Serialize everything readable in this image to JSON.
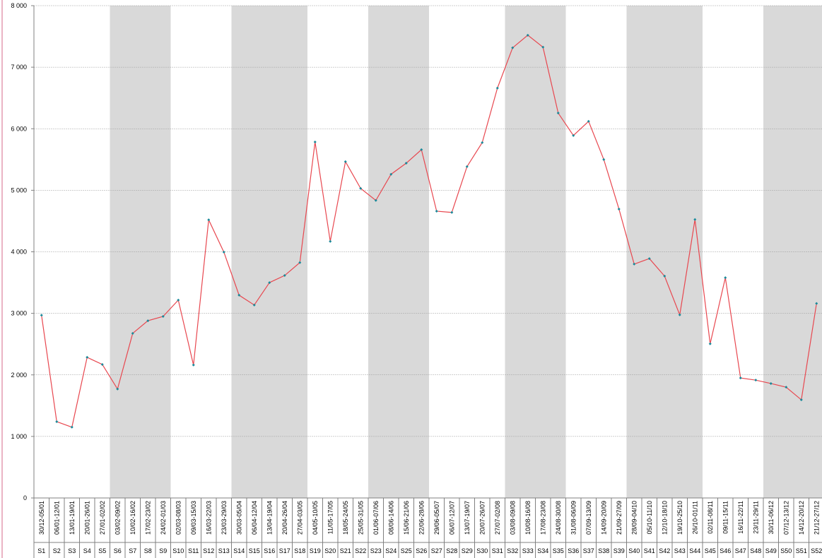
{
  "chart_data": {
    "type": "line",
    "categories": [
      "S1",
      "S2",
      "S3",
      "S4",
      "S5",
      "S6",
      "S7",
      "S8",
      "S9",
      "S10",
      "S11",
      "S12",
      "S13",
      "S14",
      "S15",
      "S16",
      "S17",
      "S18",
      "S19",
      "S20",
      "S21",
      "S22",
      "S23",
      "S24",
      "S25",
      "S26",
      "S27",
      "S28",
      "S29",
      "S30",
      "S31",
      "S32",
      "S33",
      "S34",
      "S35",
      "S36",
      "S37",
      "S38",
      "S39",
      "S40",
      "S41",
      "S42",
      "S43",
      "S44",
      "S45",
      "S46",
      "S47",
      "S48",
      "S49",
      "S50",
      "S51",
      "S52"
    ],
    "date_ranges": [
      "30/12-05/01",
      "06/01-12/01",
      "13/01-19/01",
      "20/01-26/01",
      "27/01-02/02",
      "03/02-09/02",
      "10/02-16/02",
      "17/02-23/02",
      "24/02-01/03",
      "02/03-08/03",
      "09/03-15/03",
      "16/03-22/03",
      "23/03-29/03",
      "30/03-05/04",
      "06/04-12/04",
      "13/04-19/04",
      "20/04-26/04",
      "27/04-03/05",
      "04/05-10/05",
      "11/05-17/05",
      "18/05-24/05",
      "25/05-31/05",
      "01/06-07/06",
      "08/06-14/06",
      "15/06-21/06",
      "22/06-28/06",
      "29/06-05/07",
      "06/07-12/07",
      "13/07-19/07",
      "20/07-26/07",
      "27/07-02/08",
      "03/08-09/08",
      "10/08-16/08",
      "17/08-23/08",
      "24/08-30/08",
      "31/08-06/09",
      "07/09-13/09",
      "14/09-20/09",
      "21/09-27/09",
      "28/09-04/10",
      "05/10-11/10",
      "12/10-18/10",
      "19/10-25/10",
      "26/10-01/11",
      "02/11-08/11",
      "09/11-15/11",
      "16/11-22/11",
      "23/11-29/11",
      "30/11-06/12",
      "07/12-13/12",
      "14/12-20/12",
      "21/12-27/12"
    ],
    "values": [
      2970,
      1240,
      1150,
      2285,
      2170,
      1770,
      2675,
      2880,
      2950,
      3215,
      2160,
      4520,
      3995,
      3295,
      3135,
      3500,
      3615,
      3825,
      5785,
      4170,
      5465,
      5030,
      4835,
      5260,
      5440,
      5660,
      4660,
      4640,
      5385,
      5775,
      6660,
      7315,
      7520,
      7325,
      6255,
      5890,
      6120,
      5500,
      4695,
      3800,
      3890,
      3605,
      2975,
      4525,
      2505,
      3580,
      1950,
      1915,
      1860,
      1800,
      1595,
      3160
    ],
    "color": "#e8474f",
    "marker_color": "#1a8a9a",
    "ylim": [
      0,
      8000
    ],
    "yticks": [
      0,
      {
        "value": 1000,
        "label": "1 000"
      },
      {
        "value": 2000,
        "label": "2 000"
      },
      {
        "value": 3000,
        "label": "3 000"
      },
      {
        "value": 4000,
        "label": "4 000"
      },
      {
        "value": 5000,
        "label": "5 000"
      },
      {
        "value": 6000,
        "label": "6 000"
      },
      {
        "value": 7000,
        "label": "7 000"
      },
      {
        "value": 8000,
        "label": "8 000"
      }
    ],
    "grid": true
  }
}
